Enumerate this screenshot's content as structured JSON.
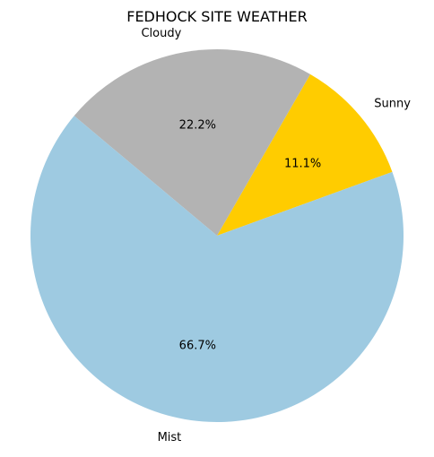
{
  "chart_data": {
    "type": "pie",
    "title": "FEDHOCK SITE WEATHER",
    "slices": [
      {
        "label": "Sunny",
        "value": 1,
        "percent_label": "11.1%",
        "color": "#ffcc00"
      },
      {
        "label": "Cloudy",
        "value": 2,
        "percent_label": "22.2%",
        "color": "#b3b3b3"
      },
      {
        "label": "Mist",
        "value": 6,
        "percent_label": "66.7%",
        "color": "#9ecae1"
      }
    ],
    "start_angle_deg": 20,
    "direction": "counterclockwise",
    "legend": "none"
  }
}
